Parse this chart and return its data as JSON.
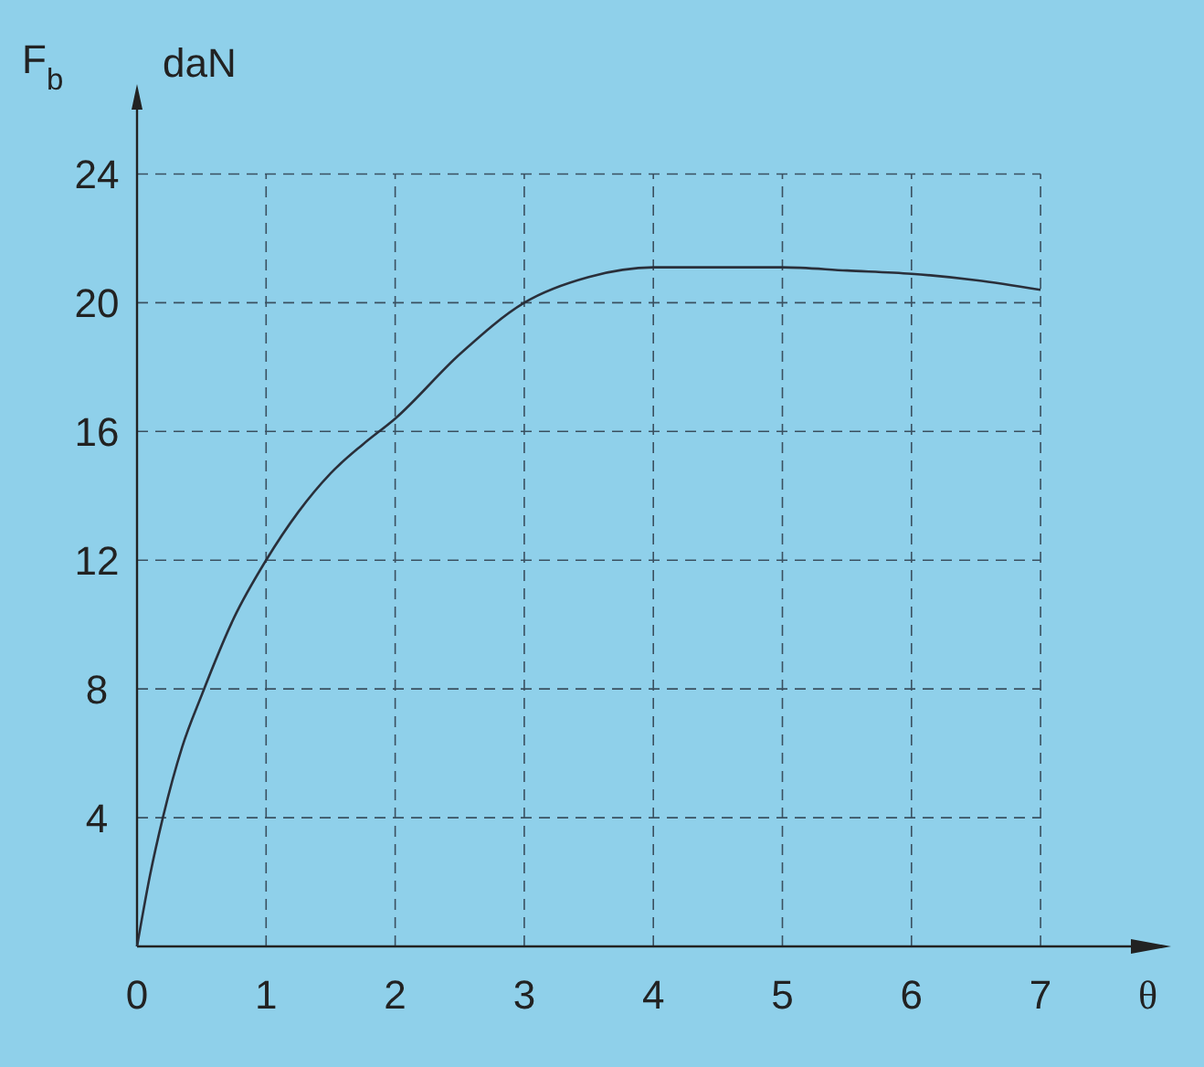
{
  "chart_data": {
    "type": "line",
    "ylabel": "F$_{b}$",
    "xlabel": "θ",
    "annotations": [
      "daN"
    ],
    "xlim": [
      0,
      7.7
    ],
    "ylim": [
      0,
      26
    ],
    "xticks": [
      0,
      1,
      2,
      3,
      4,
      5,
      6,
      7
    ],
    "yticks": [
      {
        "value": 0,
        "label": null
      },
      4,
      8,
      12,
      16,
      20,
      24
    ],
    "grid": true,
    "line_style": "solid",
    "marker": "none",
    "series": [
      {
        "color": "#2a2f3a",
        "x": [
          0,
          0.1,
          0.2,
          0.35,
          0.5,
          0.75,
          1,
          1.25,
          1.5,
          1.75,
          2,
          2.5,
          3,
          3.5,
          4,
          4.5,
          5,
          5.5,
          6,
          6.5,
          7
        ],
        "values": [
          0,
          2.2,
          4,
          6.2,
          7.8,
          10.2,
          12,
          13.5,
          14.7,
          15.6,
          16.4,
          18.4,
          20,
          20.8,
          21.1,
          21.1,
          21.1,
          21,
          20.9,
          20.7,
          20.4
        ]
      }
    ]
  }
}
